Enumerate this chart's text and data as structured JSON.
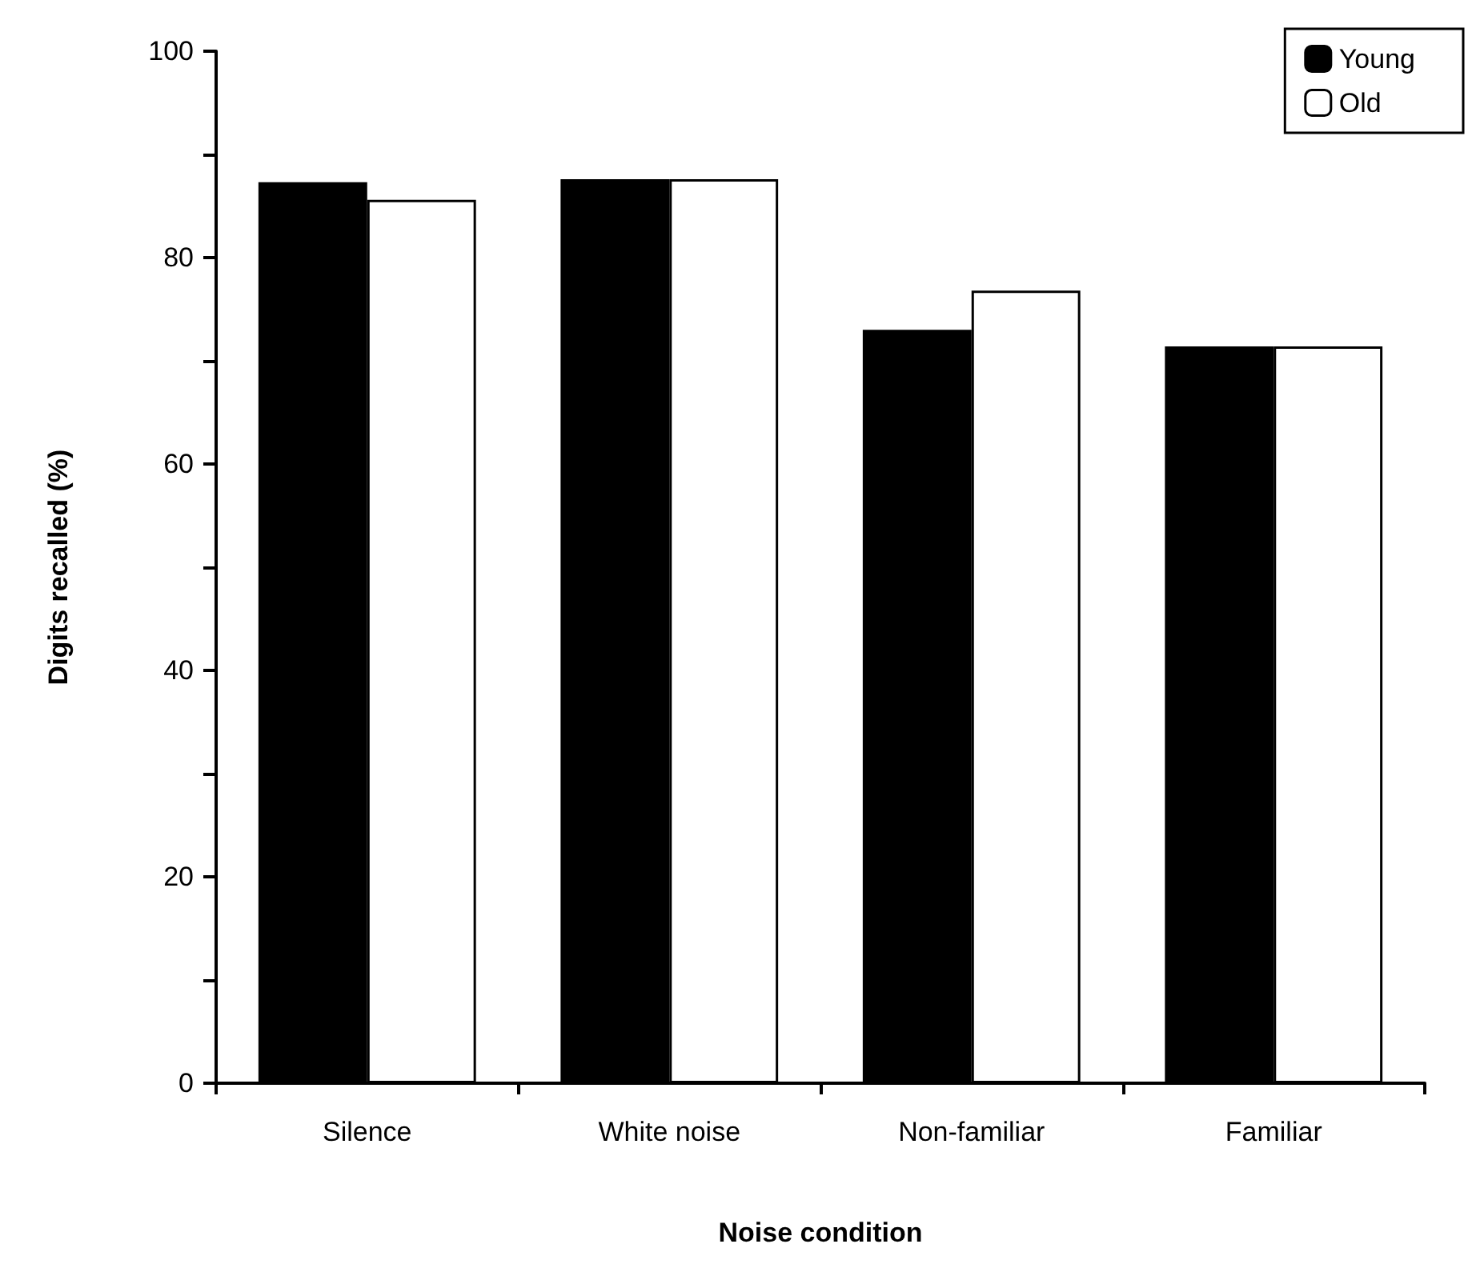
{
  "chart_data": {
    "type": "bar",
    "xlabel": "Noise condition",
    "ylabel": "Digits recalled (%)",
    "categories": [
      "Silence",
      "White noise",
      "Non-familiar",
      "Familiar"
    ],
    "series": [
      {
        "name": "Young",
        "color": "#000000",
        "values": [
          87.3,
          87.6,
          73.0,
          71.4
        ]
      },
      {
        "name": "Old",
        "color": "#ffffff",
        "values": [
          85.6,
          87.6,
          76.8,
          71.4
        ]
      }
    ],
    "ylim": [
      0,
      100
    ],
    "yticks": [
      0,
      {
        "value": 10,
        "label": null
      },
      20,
      {
        "value": 30,
        "label": null
      },
      40,
      {
        "value": 50,
        "label": null
      },
      60,
      {
        "value": 70,
        "label": null
      },
      80,
      {
        "value": 90,
        "label": null
      },
      100
    ],
    "grid": false,
    "legend": "top right"
  }
}
